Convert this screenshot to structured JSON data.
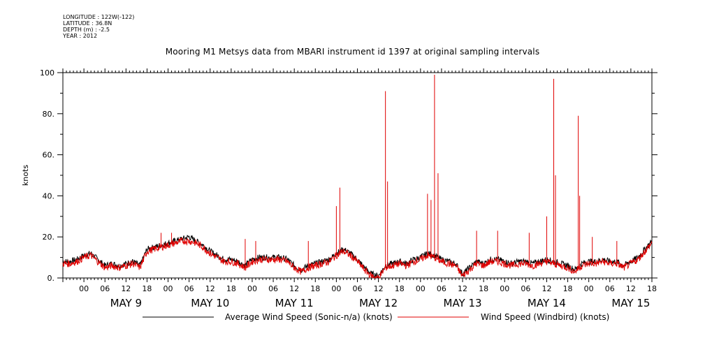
{
  "header": {
    "meta_lines": [
      "LONGITUDE : 122W(-122)",
      "LATITUDE : 36.8N",
      "DEPTH (m) : -2.5",
      "YEAR : 2012"
    ]
  },
  "chart_data": {
    "type": "line",
    "title": "Mooring M1 Metsys data from MBARI instrument id 1397 at original sampling intervals",
    "ylabel": "knots",
    "ylim": [
      0,
      100
    ],
    "yticks": [
      0,
      20,
      40,
      60,
      80,
      100
    ],
    "ytick_labels": [
      "0.",
      "20.",
      "40.",
      "60.",
      "80.",
      "100"
    ],
    "xlim_hours": [
      -6,
      162
    ],
    "hour_tick_labels": [
      "00",
      "06",
      "12",
      "18",
      "00",
      "06",
      "12",
      "18",
      "00",
      "06",
      "12",
      "18",
      "00",
      "06",
      "12",
      "18",
      "00",
      "06",
      "12",
      "18",
      "00",
      "06",
      "12",
      "18",
      "00",
      "06",
      "12",
      "18"
    ],
    "day_labels": [
      "MAY  9",
      "MAY 10",
      "MAY 11",
      "MAY 12",
      "MAY 13",
      "MAY 14",
      "MAY 15"
    ],
    "grid": false,
    "legend_position": "bottom",
    "series": [
      {
        "name": "Average Wind Speed (Sonic-n/a) (knots)",
        "color": "#000000",
        "x_hours": [
          -6,
          -4,
          -2,
          0,
          2,
          4,
          6,
          8,
          10,
          12,
          14,
          16,
          18,
          20,
          22,
          24,
          26,
          28,
          30,
          32,
          34,
          36,
          38,
          40,
          42,
          44,
          46,
          48,
          50,
          52,
          54,
          56,
          58,
          60,
          62,
          64,
          66,
          68,
          70,
          72,
          74,
          76,
          78,
          80,
          82,
          84,
          86,
          88,
          90,
          92,
          94,
          96,
          98,
          100,
          102,
          104,
          106,
          108,
          110,
          112,
          114,
          116,
          118,
          120,
          122,
          124,
          126,
          128,
          130,
          132,
          134,
          136,
          138,
          140,
          142,
          144,
          146,
          148,
          150,
          152,
          154,
          156,
          158,
          160,
          162
        ],
        "values": [
          8,
          8,
          9,
          11,
          12,
          9,
          6,
          7,
          6,
          7,
          8,
          6,
          14,
          15,
          16,
          17,
          18,
          19,
          20,
          18,
          16,
          13,
          11,
          9,
          9,
          8,
          6,
          9,
          10,
          10,
          10,
          10,
          9,
          6,
          4,
          6,
          7,
          8,
          9,
          12,
          14,
          12,
          9,
          5,
          2,
          1,
          6,
          7,
          8,
          7,
          9,
          10,
          12,
          11,
          9,
          8,
          7,
          2,
          5,
          8,
          7,
          9,
          9,
          8,
          7,
          8,
          8,
          7,
          8,
          9,
          8,
          7,
          6,
          4,
          7,
          8,
          8,
          9,
          8,
          8,
          6,
          8,
          10,
          14,
          18
        ]
      },
      {
        "name": "Wind Speed (Windbird) (knots)",
        "color": "#e00000",
        "x_hours": [
          -6,
          -4,
          -2,
          0,
          2,
          4,
          6,
          8,
          10,
          12,
          14,
          16,
          18,
          20,
          22,
          24,
          26,
          28,
          30,
          32,
          34,
          36,
          38,
          40,
          42,
          44,
          46,
          48,
          50,
          52,
          54,
          56,
          58,
          60,
          62,
          64,
          66,
          68,
          70,
          72,
          74,
          76,
          78,
          80,
          82,
          84,
          86,
          88,
          90,
          92,
          94,
          96,
          98,
          100,
          102,
          104,
          106,
          108,
          110,
          112,
          114,
          116,
          118,
          120,
          122,
          124,
          126,
          128,
          130,
          132,
          134,
          136,
          138,
          140,
          142,
          144,
          146,
          148,
          150,
          152,
          154,
          156,
          158,
          160,
          162
        ],
        "values": [
          7,
          7,
          8,
          10,
          11,
          8,
          5,
          6,
          5,
          6,
          7,
          5,
          13,
          14,
          15,
          16,
          17,
          18,
          18,
          17,
          15,
          12,
          10,
          8,
          8,
          7,
          5,
          8,
          9,
          9,
          9,
          9,
          8,
          5,
          3,
          5,
          6,
          7,
          8,
          11,
          13,
          11,
          8,
          4,
          1,
          0,
          5,
          6,
          7,
          6,
          8,
          9,
          11,
          10,
          8,
          7,
          6,
          1,
          4,
          7,
          6,
          8,
          8,
          7,
          6,
          7,
          7,
          6,
          7,
          8,
          7,
          6,
          5,
          3,
          6,
          7,
          7,
          8,
          7,
          7,
          5,
          7,
          9,
          13,
          17
        ],
        "spikes": [
          {
            "x_hours": 72,
            "value": 35
          },
          {
            "x_hours": 73,
            "value": 44
          },
          {
            "x_hours": 86,
            "value": 91
          },
          {
            "x_hours": 86.6,
            "value": 47
          },
          {
            "x_hours": 98,
            "value": 41
          },
          {
            "x_hours": 99,
            "value": 38
          },
          {
            "x_hours": 100,
            "value": 99
          },
          {
            "x_hours": 101,
            "value": 51
          },
          {
            "x_hours": 134,
            "value": 97
          },
          {
            "x_hours": 134.5,
            "value": 50
          },
          {
            "x_hours": 141,
            "value": 79
          },
          {
            "x_hours": 141.4,
            "value": 40
          },
          {
            "x_hours": 22,
            "value": 22
          },
          {
            "x_hours": 25,
            "value": 22
          },
          {
            "x_hours": 46,
            "value": 19
          },
          {
            "x_hours": 49,
            "value": 18
          },
          {
            "x_hours": 64,
            "value": 18
          },
          {
            "x_hours": 112,
            "value": 23
          },
          {
            "x_hours": 118,
            "value": 23
          },
          {
            "x_hours": 127,
            "value": 22
          },
          {
            "x_hours": 132,
            "value": 30
          },
          {
            "x_hours": 145,
            "value": 20
          },
          {
            "x_hours": 152,
            "value": 18
          }
        ]
      }
    ]
  }
}
